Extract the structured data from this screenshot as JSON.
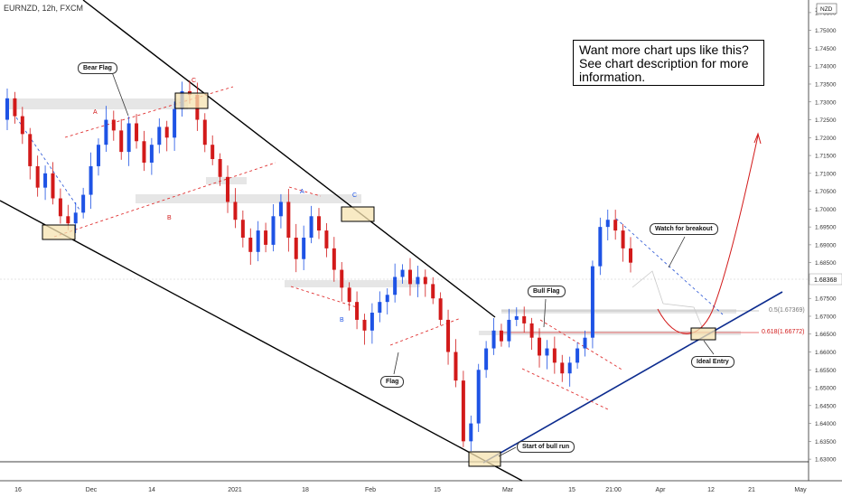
{
  "header": {
    "symbol": "EURNZD, 12h, FXCM"
  },
  "currency_badge": "NZD",
  "info_box": {
    "lines": [
      "Want more chart ups like this?",
      "See chart description for more",
      "information."
    ]
  },
  "annotations": {
    "bear_flag": "Bear Flag",
    "flag": "Flag",
    "bull_flag": "Bull Flag",
    "start_bull_run": "Start of bull run",
    "watch_breakout": "Watch for breakout",
    "ideal_entry": "Ideal Entry",
    "fib_05": "0.5(1.67369)",
    "fib_0618": "0.618(1.66772)",
    "current_price": "1.68368",
    "wave_a1": "A",
    "wave_b1": "B",
    "wave_c1": "C",
    "wave_a2": "A",
    "wave_b2": "B",
    "wave_c2": "C"
  },
  "colors": {
    "up": "#1e53e5",
    "down": "#d21a1a",
    "trendline": "#000000",
    "support": "#0d2c8f",
    "projection": "#d21a1a",
    "flag_line": "#e03030"
  },
  "chart_data": {
    "type": "candlestick",
    "title": "EURNZD, 12h, FXCM",
    "ylim": [
      1.6275,
      1.7565
    ],
    "y_ticks": [
      "1.75500",
      "1.75000",
      "1.74500",
      "1.74000",
      "1.73500",
      "1.73000",
      "1.72500",
      "1.72000",
      "1.71500",
      "1.71000",
      "1.70500",
      "1.70000",
      "1.69500",
      "1.69000",
      "1.68500",
      "1.68000",
      "1.67500",
      "1.67000",
      "1.66500",
      "1.66000",
      "1.65500",
      "1.65000",
      "1.64500",
      "1.64000",
      "1.63500",
      "1.63000"
    ],
    "top_tick": "1.7550",
    "x_ticks": [
      "16",
      "Dec",
      "14",
      "2021",
      "18",
      "Feb",
      "15",
      "Mar",
      "15",
      "21:00",
      "Apr",
      "12",
      "21",
      "May"
    ],
    "closes": [
      1.731,
      1.726,
      1.721,
      1.712,
      1.706,
      1.71,
      1.703,
      1.698,
      1.696,
      1.699,
      1.704,
      1.712,
      1.718,
      1.725,
      1.722,
      1.716,
      1.724,
      1.719,
      1.713,
      1.718,
      1.723,
      1.72,
      1.728,
      1.733,
      1.732,
      1.725,
      1.718,
      1.714,
      1.709,
      1.702,
      1.697,
      1.692,
      1.688,
      1.694,
      1.69,
      1.698,
      1.702,
      1.692,
      1.686,
      1.692,
      1.698,
      1.694,
      1.689,
      1.683,
      1.678,
      1.674,
      1.669,
      1.666,
      1.671,
      1.674,
      1.676,
      1.681,
      1.683,
      1.679,
      1.681,
      1.679,
      1.675,
      1.669,
      1.66,
      1.652,
      1.635,
      1.64,
      1.655,
      1.661,
      1.666,
      1.663,
      1.669,
      1.67,
      1.668,
      1.664,
      1.659,
      1.661,
      1.657,
      1.654,
      1.657,
      1.661,
      1.664,
      1.684,
      1.695,
      1.697,
      1.694,
      1.689,
      1.685
    ],
    "fib_levels": [
      {
        "label": "0.5",
        "value": 1.67369
      },
      {
        "label": "0.618",
        "value": 1.66772
      }
    ],
    "current_price": 1.68368,
    "legend": "none",
    "grid": false
  }
}
